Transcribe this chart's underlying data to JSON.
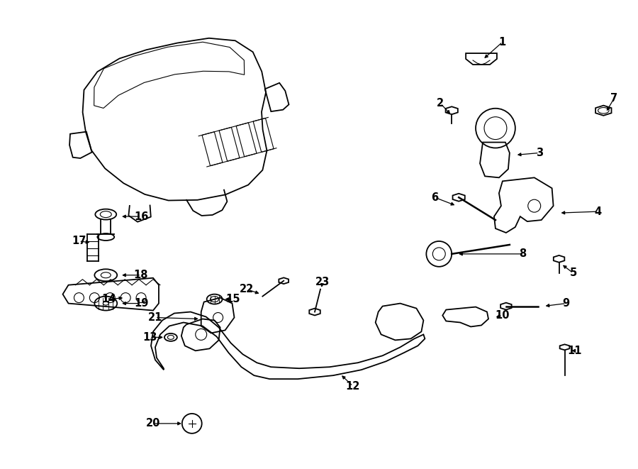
{
  "bg_color": "#ffffff",
  "line_color": "#000000",
  "figsize": [
    9.0,
    6.61
  ],
  "dpi": 100
}
